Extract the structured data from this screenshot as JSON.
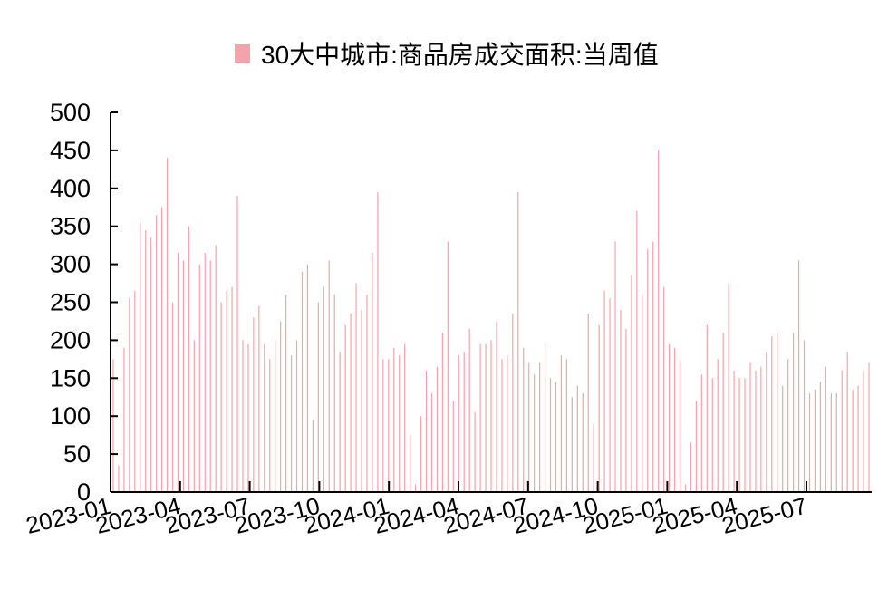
{
  "chart_data": {
    "type": "bar",
    "legend": {
      "position": "top-center",
      "entries": [
        "30大中城市:商品房成交面积:当周值"
      ]
    },
    "series": [
      {
        "name": "30大中城市:商品房成交面积:当周值",
        "color": "#f4a3ab",
        "x_start": "2023-01",
        "values": [
          175,
          35,
          190,
          255,
          265,
          355,
          345,
          335,
          365,
          375,
          440,
          250,
          315,
          305,
          350,
          200,
          300,
          315,
          305,
          325,
          250,
          265,
          270,
          390,
          200,
          195,
          230,
          245,
          195,
          175,
          200,
          225,
          260,
          180,
          200,
          290,
          300,
          95,
          250,
          270,
          305,
          260,
          185,
          220,
          235,
          275,
          240,
          260,
          315,
          395,
          175,
          175,
          190,
          180,
          195,
          75,
          10,
          100,
          160,
          130,
          165,
          210,
          330,
          120,
          180,
          185,
          215,
          105,
          195,
          195,
          200,
          225,
          175,
          180,
          235,
          395,
          190,
          170,
          155,
          170,
          195,
          150,
          145,
          180,
          175,
          125,
          140,
          130,
          235,
          90,
          220,
          265,
          255,
          330,
          240,
          215,
          285,
          370,
          260,
          320,
          330,
          450,
          270,
          195,
          190,
          175,
          10,
          65,
          120,
          155,
          220,
          150,
          175,
          210,
          275,
          160,
          150,
          150,
          170,
          160,
          165,
          185,
          205,
          210,
          140,
          175,
          210,
          305,
          200,
          130,
          135,
          145,
          165,
          130,
          130,
          160,
          185,
          135,
          140,
          160,
          170
        ]
      }
    ],
    "x_tick_labels": [
      "2023-01",
      "2023-04",
      "2023-07",
      "2023-10",
      "2024-01",
      "2024-04",
      "2024-07",
      "2024-10",
      "2025-01",
      "2025-04",
      "2025-07"
    ],
    "y_tick_labels": [
      "0",
      "50",
      "100",
      "150",
      "200",
      "250",
      "300",
      "350",
      "400",
      "450",
      "500"
    ],
    "ylim": [
      0,
      500
    ],
    "grid": false
  }
}
